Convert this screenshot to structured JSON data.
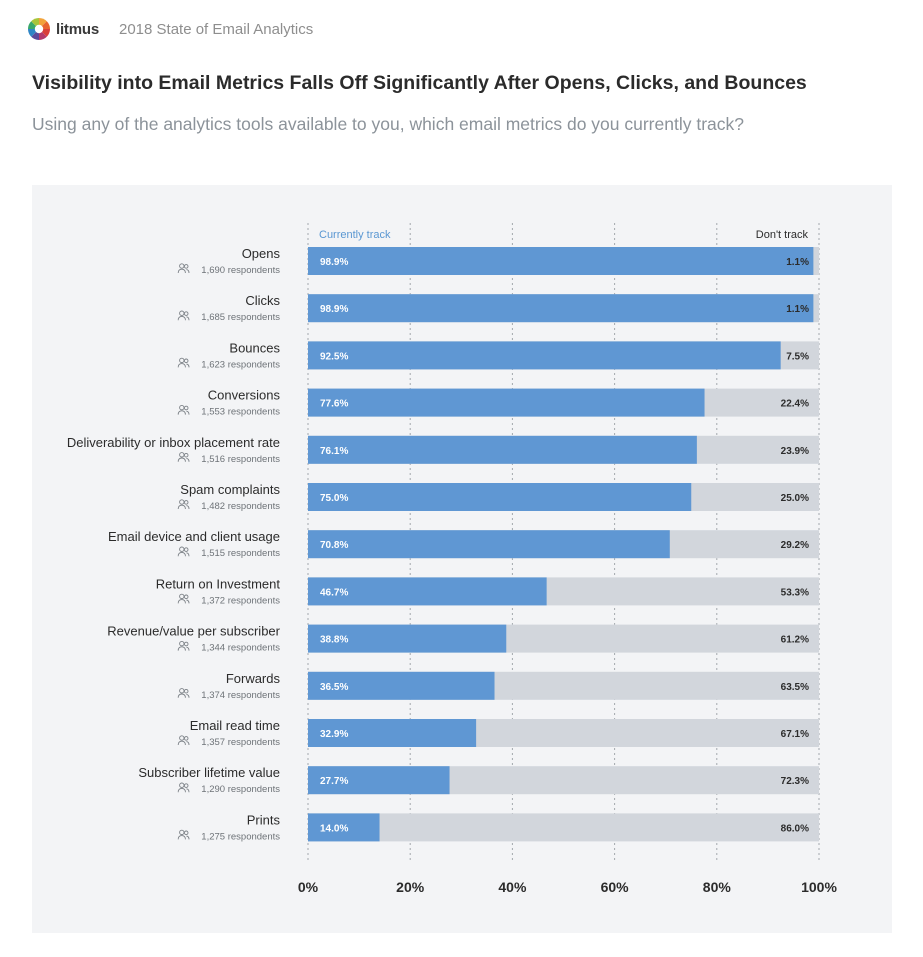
{
  "header": {
    "brand": "litmus",
    "report_title": "2018 State of Email Analytics",
    "logo_icon": "litmus-logo-icon"
  },
  "title": "Visibility into Email Metrics Falls Off Significantly After Opens, Clicks, and Bounces",
  "subtitle": "Using any of the analytics tools available to you, which email metrics do you currently track?",
  "colors": {
    "track": "#5f97d3",
    "not_track": "#d2d6dc",
    "panel": "#f3f4f6"
  },
  "chart_data": {
    "type": "bar",
    "orientation": "horizontal",
    "stacked": true,
    "xlim": [
      0,
      100
    ],
    "x_ticks": [
      "0%",
      "20%",
      "40%",
      "60%",
      "80%",
      "100%"
    ],
    "grid": "vertical dashed",
    "legend": {
      "left": "Currently track",
      "right": "Don't track"
    },
    "people_icon": "people-icon",
    "categories": [
      "Opens",
      "Clicks",
      "Bounces",
      "Conversions",
      "Deliverability or inbox placement rate",
      "Spam complaints",
      "Email device and client usage",
      "Return on Investment",
      "Revenue/value per subscriber",
      "Forwards",
      "Email read time",
      "Subscriber lifetime value",
      "Prints"
    ],
    "respondents": [
      "1,690 respondents",
      "1,685 respondents",
      "1,623 respondents",
      "1,553 respondents",
      "1,516 respondents",
      "1,482 respondents",
      "1,515 respondents",
      "1,372 respondents",
      "1,344 respondents",
      "1,374 respondents",
      "1,357 respondents",
      "1,290 respondents",
      "1,275 respondents"
    ],
    "series": [
      {
        "name": "Currently track",
        "values": [
          98.9,
          98.9,
          92.5,
          77.6,
          76.1,
          75.0,
          70.8,
          46.7,
          38.8,
          36.5,
          32.9,
          27.7,
          14.0
        ],
        "labels": [
          "98.9%",
          "98.9%",
          "92.5%",
          "77.6%",
          "76.1%",
          "75.0%",
          "70.8%",
          "46.7%",
          "38.8%",
          "36.5%",
          "32.9%",
          "27.7%",
          "14.0%"
        ]
      },
      {
        "name": "Don't track",
        "values": [
          1.1,
          1.1,
          7.5,
          22.4,
          23.9,
          25.0,
          29.2,
          53.3,
          61.2,
          63.5,
          67.1,
          72.3,
          86.0
        ],
        "labels": [
          "1.1%",
          "1.1%",
          "7.5%",
          "22.4%",
          "23.9%",
          "25.0%",
          "29.2%",
          "53.3%",
          "61.2%",
          "63.5%",
          "67.1%",
          "72.3%",
          "86.0%"
        ]
      }
    ]
  }
}
